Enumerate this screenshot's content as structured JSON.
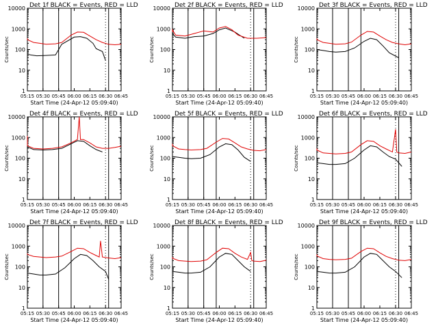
{
  "chart_data": [
    {
      "type": "line",
      "title": "Det 1f BLACK = Events, RED = LLD",
      "xlabel": "Start Time (24-Apr-12 05:09:40)",
      "ylabel": "Counts/sec",
      "yscale": "log",
      "ylim": [
        1,
        10000
      ],
      "xticks": [
        "05:15",
        "05:30",
        "05:45",
        "06:00",
        "06:15",
        "06:30",
        "06:45"
      ],
      "yticks": [
        "1",
        "10",
        "100",
        "1000",
        "10000"
      ],
      "series": [
        {
          "name": "Events",
          "color": "#000000",
          "x": [
            5.25,
            5.3,
            5.4,
            5.55,
            5.7,
            5.8,
            6.0,
            6.1,
            6.2,
            6.3,
            6.35,
            6.45,
            6.5,
            6.6,
            6.7
          ],
          "y": [
            60,
            55,
            50,
            52,
            55,
            180,
            400,
            420,
            350,
            200,
            110,
            80,
            30,
            null,
            null
          ]
        },
        {
          "name": "LLD",
          "color": "#e00000",
          "x": [
            5.15,
            5.25,
            5.35,
            5.45,
            5.55,
            5.7,
            5.8,
            5.95,
            6.05,
            6.15,
            6.25,
            6.35,
            6.45,
            6.55,
            6.65,
            6.75
          ],
          "y": [
            350,
            300,
            220,
            200,
            180,
            190,
            220,
            500,
            700,
            680,
            450,
            300,
            220,
            180,
            170,
            180
          ]
        }
      ],
      "vlines_dotted": [
        5.25,
        6.5
      ],
      "vlines_solid": [
        5.5,
        5.75,
        5.95,
        6.55
      ]
    },
    {
      "type": "line",
      "title": "Det 2f BLACK = Events, RED = LLD",
      "xlabel": "Start Time (24-Apr-12 05:09:40)",
      "ylabel": "Counts/sec",
      "yscale": "log",
      "ylim": [
        1,
        10000
      ],
      "xticks": [
        "05:15",
        "05:30",
        "05:45",
        "06:00",
        "06:15",
        "06:30",
        "06:45"
      ],
      "yticks": [
        "1",
        "10",
        "100",
        "1000",
        "10000"
      ],
      "series": [
        {
          "name": "Events",
          "color": "#000000",
          "x": [
            5.15,
            5.3,
            5.45,
            5.6,
            5.75,
            5.9,
            6.0,
            6.1,
            6.25,
            6.4
          ],
          "y": [
            600,
            400,
            350,
            420,
            450,
            600,
            900,
            1100,
            700,
            350
          ]
        },
        {
          "name": "LLD",
          "color": "#e00000",
          "x": [
            5.15,
            5.2,
            5.3,
            5.45,
            5.6,
            5.75,
            5.9,
            6.0,
            6.1,
            6.2,
            6.3,
            6.45,
            6.6,
            6.75
          ],
          "y": [
            700,
            900,
            500,
            450,
            600,
            800,
            700,
            1100,
            1300,
            900,
            500,
            350,
            350,
            380
          ]
        }
      ],
      "vlines_dotted": [
        5.25,
        6.5
      ],
      "vlines_solid": [
        5.5,
        5.75,
        5.95,
        6.55
      ]
    },
    {
      "type": "line",
      "title": "Det 3f BLACK = Events, RED = LLD",
      "xlabel": "Start Time (24-Apr-12 05:09:40)",
      "ylabel": "Counts/sec",
      "yscale": "log",
      "ylim": [
        1,
        10000
      ],
      "xticks": [
        "05:15",
        "05:30",
        "05:45",
        "06:00",
        "06:15",
        "06:30",
        "06:45"
      ],
      "yticks": [
        "1",
        "10",
        "100",
        "1000",
        "10000"
      ],
      "series": [
        {
          "name": "Events",
          "color": "#000000",
          "x": [
            5.25,
            5.35,
            5.45,
            5.55,
            5.7,
            5.85,
            6.0,
            6.1,
            6.2,
            6.3,
            6.4,
            6.55
          ],
          "y": [
            100,
            90,
            80,
            75,
            80,
            120,
            250,
            350,
            300,
            150,
            70,
            40
          ]
        },
        {
          "name": "LLD",
          "color": "#e00000",
          "x": [
            5.15,
            5.25,
            5.35,
            5.45,
            5.55,
            5.7,
            5.8,
            5.95,
            6.05,
            6.15,
            6.25,
            6.35,
            6.45,
            6.55,
            6.65,
            6.75
          ],
          "y": [
            350,
            300,
            220,
            200,
            180,
            190,
            230,
            500,
            750,
            700,
            450,
            300,
            220,
            190,
            170,
            190
          ]
        }
      ],
      "vlines_dotted": [
        5.25,
        6.5
      ],
      "vlines_solid": [
        5.5,
        5.75,
        5.95,
        6.55
      ]
    },
    {
      "type": "line",
      "title": "Det 4f BLACK = Events, RED = LLD",
      "xlabel": "Start Time (24-Apr-12 05:09:40)",
      "ylabel": "Counts/sec",
      "yscale": "log",
      "ylim": [
        1,
        10000
      ],
      "xticks": [
        "05:15",
        "05:30",
        "05:45",
        "06:00",
        "06:15",
        "06:30",
        "06:45"
      ],
      "yticks": [
        "1",
        "10",
        "100",
        "1000",
        "10000"
      ],
      "series": [
        {
          "name": "Events",
          "color": "#000000",
          "x": [
            5.15,
            5.25,
            5.35,
            5.5,
            5.65,
            5.8,
            5.95,
            6.05,
            6.15,
            6.25,
            6.35,
            6.45
          ],
          "y": [
            700,
            350,
            260,
            250,
            260,
            300,
            500,
            700,
            650,
            400,
            260,
            200
          ]
        },
        {
          "name": "LLD",
          "color": "#e00000",
          "x": [
            5.15,
            5.18,
            5.25,
            5.35,
            5.5,
            5.65,
            5.8,
            5.95,
            6.05,
            6.08,
            6.1,
            6.15,
            6.25,
            6.35,
            6.45,
            6.55,
            6.65,
            6.75
          ],
          "y": [
            800,
            1200,
            400,
            300,
            280,
            300,
            350,
            550,
            800,
            10000,
            800,
            800,
            550,
            350,
            300,
            300,
            330,
            380
          ]
        }
      ],
      "vlines_dotted": [
        5.25,
        6.5
      ],
      "vlines_solid": [
        5.5,
        5.75,
        5.95,
        6.55
      ]
    },
    {
      "type": "line",
      "title": "Det 5f BLACK = Events, RED = LLD",
      "xlabel": "Start Time (24-Apr-12 05:09:40)",
      "ylabel": "Counts/sec",
      "yscale": "log",
      "ylim": [
        1,
        10000
      ],
      "xticks": [
        "05:15",
        "05:30",
        "05:45",
        "06:00",
        "06:15",
        "06:30",
        "06:45"
      ],
      "yticks": [
        "1",
        "10",
        "100",
        "1000",
        "10000"
      ],
      "series": [
        {
          "name": "Events",
          "color": "#000000",
          "x": [
            5.25,
            5.35,
            5.45,
            5.55,
            5.7,
            5.85,
            6.0,
            6.1,
            6.2,
            6.3,
            6.4,
            6.5
          ],
          "y": [
            120,
            110,
            100,
            95,
            100,
            150,
            350,
            500,
            450,
            250,
            110,
            70
          ]
        },
        {
          "name": "LLD",
          "color": "#e00000",
          "x": [
            5.15,
            5.25,
            5.35,
            5.45,
            5.55,
            5.7,
            5.8,
            5.95,
            6.05,
            6.15,
            6.25,
            6.35,
            6.45,
            6.55,
            6.65,
            6.75
          ],
          "y": [
            500,
            400,
            280,
            260,
            250,
            260,
            300,
            600,
            900,
            850,
            550,
            350,
            280,
            240,
            230,
            260
          ]
        }
      ],
      "vlines_dotted": [
        5.25,
        6.5
      ],
      "vlines_solid": [
        5.5,
        5.75,
        5.95,
        6.55
      ]
    },
    {
      "type": "line",
      "title": "Det 6f BLACK = Events, RED = LLD",
      "xlabel": "Start Time (24-Apr-12 05:09:40)",
      "ylabel": "Counts/sec",
      "yscale": "log",
      "ylim": [
        1,
        10000
      ],
      "xticks": [
        "05:15",
        "05:30",
        "05:45",
        "06:00",
        "06:15",
        "06:30",
        "06:45"
      ],
      "yticks": [
        "1",
        "10",
        "100",
        "1000",
        "10000"
      ],
      "series": [
        {
          "name": "Events",
          "color": "#000000",
          "x": [
            5.25,
            5.35,
            5.45,
            5.55,
            5.7,
            5.85,
            6.0,
            6.1,
            6.2,
            6.3,
            6.4,
            6.5,
            6.6
          ],
          "y": [
            60,
            55,
            50,
            50,
            55,
            100,
            250,
            400,
            350,
            200,
            120,
            90,
            40
          ]
        },
        {
          "name": "LLD",
          "color": "#e00000",
          "x": [
            5.15,
            5.25,
            5.35,
            5.45,
            5.55,
            5.7,
            5.8,
            5.95,
            6.05,
            6.15,
            6.25,
            6.35,
            6.45,
            6.5,
            6.52,
            6.55,
            6.65,
            6.75
          ],
          "y": [
            300,
            250,
            180,
            170,
            160,
            170,
            200,
            450,
            700,
            650,
            400,
            280,
            200,
            2500,
            200,
            180,
            170,
            200
          ]
        }
      ],
      "vlines_dotted": [
        5.25,
        6.5
      ],
      "vlines_solid": [
        5.5,
        5.75,
        5.95,
        6.55
      ]
    },
    {
      "type": "line",
      "title": "Det 7f BLACK = Events, RED = LLD",
      "xlabel": "Start Time (24-Apr-12 05:09:40)",
      "ylabel": "Counts/sec",
      "yscale": "log",
      "ylim": [
        1,
        10000
      ],
      "xticks": [
        "05:15",
        "05:30",
        "05:45",
        "06:00",
        "06:15",
        "06:30",
        "06:45"
      ],
      "yticks": [
        "1",
        "10",
        "100",
        "1000",
        "10000"
      ],
      "series": [
        {
          "name": "Events",
          "color": "#000000",
          "x": [
            5.25,
            5.35,
            5.45,
            5.55,
            5.7,
            5.85,
            6.0,
            6.1,
            6.2,
            6.3,
            6.4,
            6.5,
            6.55
          ],
          "y": [
            50,
            45,
            40,
            40,
            45,
            90,
            250,
            400,
            350,
            200,
            100,
            60,
            25
          ]
        },
        {
          "name": "LLD",
          "color": "#e00000",
          "x": [
            5.15,
            5.25,
            5.35,
            5.45,
            5.55,
            5.7,
            5.8,
            5.95,
            6.05,
            6.15,
            6.25,
            6.35,
            6.4,
            6.42,
            6.45,
            6.55,
            6.65,
            6.75
          ],
          "y": [
            450,
            400,
            320,
            300,
            280,
            300,
            330,
            550,
            800,
            750,
            500,
            350,
            300,
            1800,
            300,
            270,
            250,
            280
          ]
        }
      ],
      "vlines_dotted": [
        5.25,
        6.5
      ],
      "vlines_solid": [
        5.5,
        5.75,
        5.95,
        6.55
      ]
    },
    {
      "type": "line",
      "title": "Det 8f BLACK = Events, RED = LLD",
      "xlabel": "Start Time (24-Apr-12 05:09:40)",
      "ylabel": "Counts/sec",
      "yscale": "log",
      "ylim": [
        1,
        10000
      ],
      "xticks": [
        "05:15",
        "05:30",
        "05:45",
        "06:00",
        "06:15",
        "06:30",
        "06:45"
      ],
      "yticks": [
        "1",
        "10",
        "100",
        "1000",
        "10000"
      ],
      "series": [
        {
          "name": "Events",
          "color": "#000000",
          "x": [
            5.25,
            5.35,
            5.45,
            5.55,
            5.7,
            5.85,
            6.0,
            6.1,
            6.2,
            6.3,
            6.4,
            6.5
          ],
          "y": [
            60,
            55,
            50,
            50,
            55,
            100,
            300,
            450,
            400,
            200,
            100,
            60
          ]
        },
        {
          "name": "LLD",
          "color": "#e00000",
          "x": [
            5.15,
            5.25,
            5.35,
            5.45,
            5.55,
            5.7,
            5.8,
            5.95,
            6.05,
            6.15,
            6.25,
            6.35,
            6.45,
            6.5,
            6.52,
            6.55,
            6.65,
            6.75
          ],
          "y": [
            300,
            260,
            200,
            190,
            180,
            190,
            220,
            500,
            800,
            750,
            450,
            300,
            230,
            500,
            200,
            190,
            180,
            210
          ]
        }
      ],
      "vlines_dotted": [
        5.25,
        6.5
      ],
      "vlines_solid": [
        5.5,
        5.75,
        5.95,
        6.55
      ]
    },
    {
      "type": "line",
      "title": "Det 9f BLACK = Events, RED = LLD",
      "xlabel": "Start Time (24-Apr-12 05:09:40)",
      "ylabel": "Counts/sec",
      "yscale": "log",
      "ylim": [
        1,
        10000
      ],
      "xticks": [
        "05:15",
        "05:30",
        "05:45",
        "06:00",
        "06:15",
        "06:30",
        "06:45"
      ],
      "yticks": [
        "1",
        "10",
        "100",
        "1000",
        "10000"
      ],
      "series": [
        {
          "name": "Events",
          "color": "#000000",
          "x": [
            5.25,
            5.35,
            5.45,
            5.55,
            5.7,
            5.85,
            6.0,
            6.1,
            6.2,
            6.3,
            6.4,
            6.5,
            6.6
          ],
          "y": [
            60,
            55,
            50,
            50,
            55,
            100,
            300,
            450,
            400,
            200,
            100,
            60,
            30
          ]
        },
        {
          "name": "LLD",
          "color": "#e00000",
          "x": [
            5.15,
            5.25,
            5.35,
            5.45,
            5.55,
            5.7,
            5.8,
            5.95,
            6.05,
            6.15,
            6.25,
            6.35,
            6.45,
            6.55,
            6.65,
            6.75
          ],
          "y": [
            400,
            340,
            250,
            230,
            220,
            230,
            260,
            550,
            800,
            750,
            480,
            320,
            250,
            210,
            200,
            230
          ]
        }
      ],
      "vlines_dotted": [
        5.25,
        6.5
      ],
      "vlines_solid": [
        5.5,
        5.75,
        5.95,
        6.55
      ]
    }
  ]
}
